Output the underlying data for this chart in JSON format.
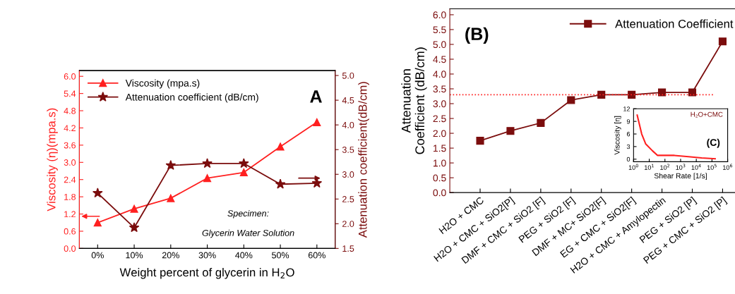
{
  "chart_data": [
    {
      "type": "line",
      "categories": [
        "0%",
        "10%",
        "20%",
        "30%",
        "40%",
        "50%",
        "60%"
      ],
      "xlabel": "Weight percent of glycerin in H$_{2}$O",
      "ylabel": "Viscosity (η)(mpa.s)",
      "y2label": "Attenuation coefficient(dB/cm)",
      "series": [
        {
          "name": "Viscosity (mpa.s)",
          "color": "#ff2020",
          "marker": "triangle",
          "values": [
            0.9,
            1.38,
            1.75,
            2.45,
            2.65,
            3.55,
            4.4
          ]
        },
        {
          "name": "Attenuation coefficient (dB/cm)",
          "color": "#7b0d0d",
          "marker": "star",
          "axis": "y2",
          "values": [
            2.62,
            1.92,
            3.18,
            3.22,
            3.22,
            2.8,
            2.82
          ]
        }
      ],
      "ylim": [
        0,
        6.2
      ],
      "yticks": [
        {
          "value": 0,
          "label": "0.0"
        },
        0.6,
        1.2,
        1.8,
        2.4,
        {
          "value": 3,
          "label": "3.0"
        },
        3.6,
        4.2,
        4.8,
        5.4,
        {
          "value": 6,
          "label": "6.0"
        }
      ],
      "y2lim": [
        1.5,
        5.1
      ],
      "y2ticks": [
        1.5,
        {
          "value": 2,
          "label": "2.0"
        },
        2.5,
        {
          "value": 3,
          "label": "3.0"
        },
        3.5,
        {
          "value": 4,
          "label": "4.0"
        },
        4.5,
        {
          "value": 5,
          "label": "5.0"
        }
      ],
      "legend": "top left",
      "grid": false,
      "annotations": [
        "A",
        "Specimen:",
        "Glycerin Water Solution"
      ]
    },
    {
      "type": "line",
      "categories": [
        "H2O + CMC",
        "H2O + CMC + SiO2[P]",
        "DMF + CMC + SiO2 [F]",
        "PEG + SiO2 [F]",
        "DMF + MC+ SiO2[F]",
        "EG + CMC + SiO2[F]",
        "H2O + CMC + Amylopectin",
        "PEG + SiO2 [P]",
        "PEG + CMC + SiO2 [P]"
      ],
      "ylabel": "Attenuation\nCoefficient (dB/cm)",
      "series": [
        {
          "name": "Attenuation Coefficient",
          "color": "#7b0d0d",
          "marker": "square",
          "values": [
            1.75,
            2.08,
            2.35,
            3.12,
            3.3,
            3.3,
            3.38,
            3.38,
            5.1
          ]
        }
      ],
      "ylim": [
        0,
        6.2
      ],
      "yticks": [
        {
          "value": 0,
          "label": "0.0"
        },
        0.5,
        {
          "value": 1,
          "label": "1.0"
        },
        1.5,
        {
          "value": 2,
          "label": "2.0"
        },
        2.5,
        {
          "value": 3,
          "label": "3.0"
        },
        3.5,
        {
          "value": 4,
          "label": "4.0"
        },
        4.5,
        {
          "value": 5,
          "label": "5.0"
        },
        5.5,
        {
          "value": 6,
          "label": "6.0"
        }
      ],
      "ref_lines": [
        {
          "axis": "y",
          "value": 3.3,
          "color": "#ff2020",
          "line_style": "dotted"
        }
      ],
      "legend": "top right",
      "grid": false,
      "annotations": [
        "(B)"
      ]
    },
    {
      "type": "line",
      "xlabel": "Shear Rate [1/s]",
      "ylabel": "Viscosity [η]",
      "log": "x",
      "series": [
        {
          "color": "#ff2020",
          "x": [
            1.7,
            3.3,
            6.0,
            16,
            34,
            400,
            3200,
            22000,
            160000
          ],
          "values": [
            10.5,
            6.0,
            3.6,
            2.0,
            0.9,
            0.9,
            0.6,
            0.3,
            0.1
          ]
        }
      ],
      "xlim": [
        1,
        1000000
      ],
      "xticks": [
        {
          "value": 1,
          "label": "10$^{0}$"
        },
        {
          "value": 10,
          "label": "10$^{1}$"
        },
        {
          "value": 100,
          "label": "10$^{2}$"
        },
        {
          "value": 1000,
          "label": "10$^{3}$"
        },
        {
          "value": 10000,
          "label": "10$^{4}$"
        },
        {
          "value": 100000,
          "label": "10$^{5}$"
        },
        {
          "value": 1000000,
          "label": "10$^{6}$"
        }
      ],
      "ylim": [
        -0.6,
        12
      ],
      "yticks": [
        0,
        3,
        6,
        9,
        12
      ],
      "grid": false,
      "annotations": [
        "H₂O+CMC",
        "(C)"
      ]
    }
  ]
}
